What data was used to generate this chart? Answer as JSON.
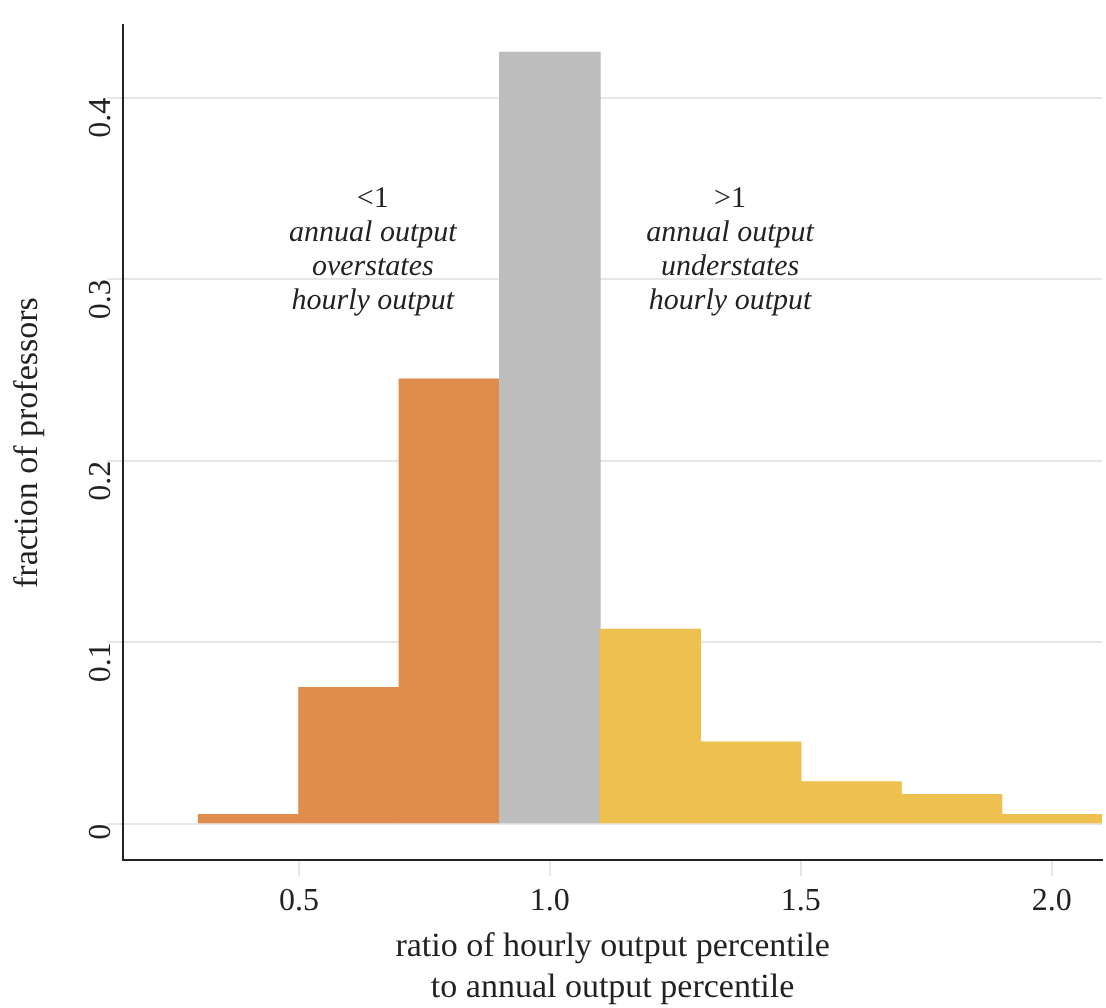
{
  "chart_data": {
    "type": "histogram",
    "xlabel": "ratio of hourly output percentile\nto annual output percentile",
    "ylabel": "fraction of professors",
    "bins": [
      0.3,
      0.5,
      0.7,
      0.9,
      1.1,
      1.3,
      1.5,
      1.7,
      1.9,
      2.1
    ],
    "values": [
      0.005,
      0.075,
      0.245,
      0.425,
      0.107,
      0.045,
      0.023,
      0.016,
      0.005
    ],
    "colors": [
      "#e08c4c",
      "#e08c4c",
      "#e08c4c",
      "#bdbdbd",
      "#eec050",
      "#eec050",
      "#eec050",
      "#eec050",
      "#eec050"
    ],
    "xlim": [
      0.15,
      2.1
    ],
    "xticks": [
      0.5,
      {
        "value": 1,
        "label": "1.0"
      },
      1.5,
      {
        "value": 2,
        "label": "2.0"
      }
    ],
    "ylim": [
      -0.02,
      0.44
    ],
    "yticks": [
      0,
      0.1,
      0.2,
      0.3,
      0.4
    ],
    "grid": "y",
    "legend": false,
    "annotations": [
      "<1\nannual output\noverstates\nhourly output",
      ">1\nannual output\nunderstates\nhourly output"
    ]
  }
}
